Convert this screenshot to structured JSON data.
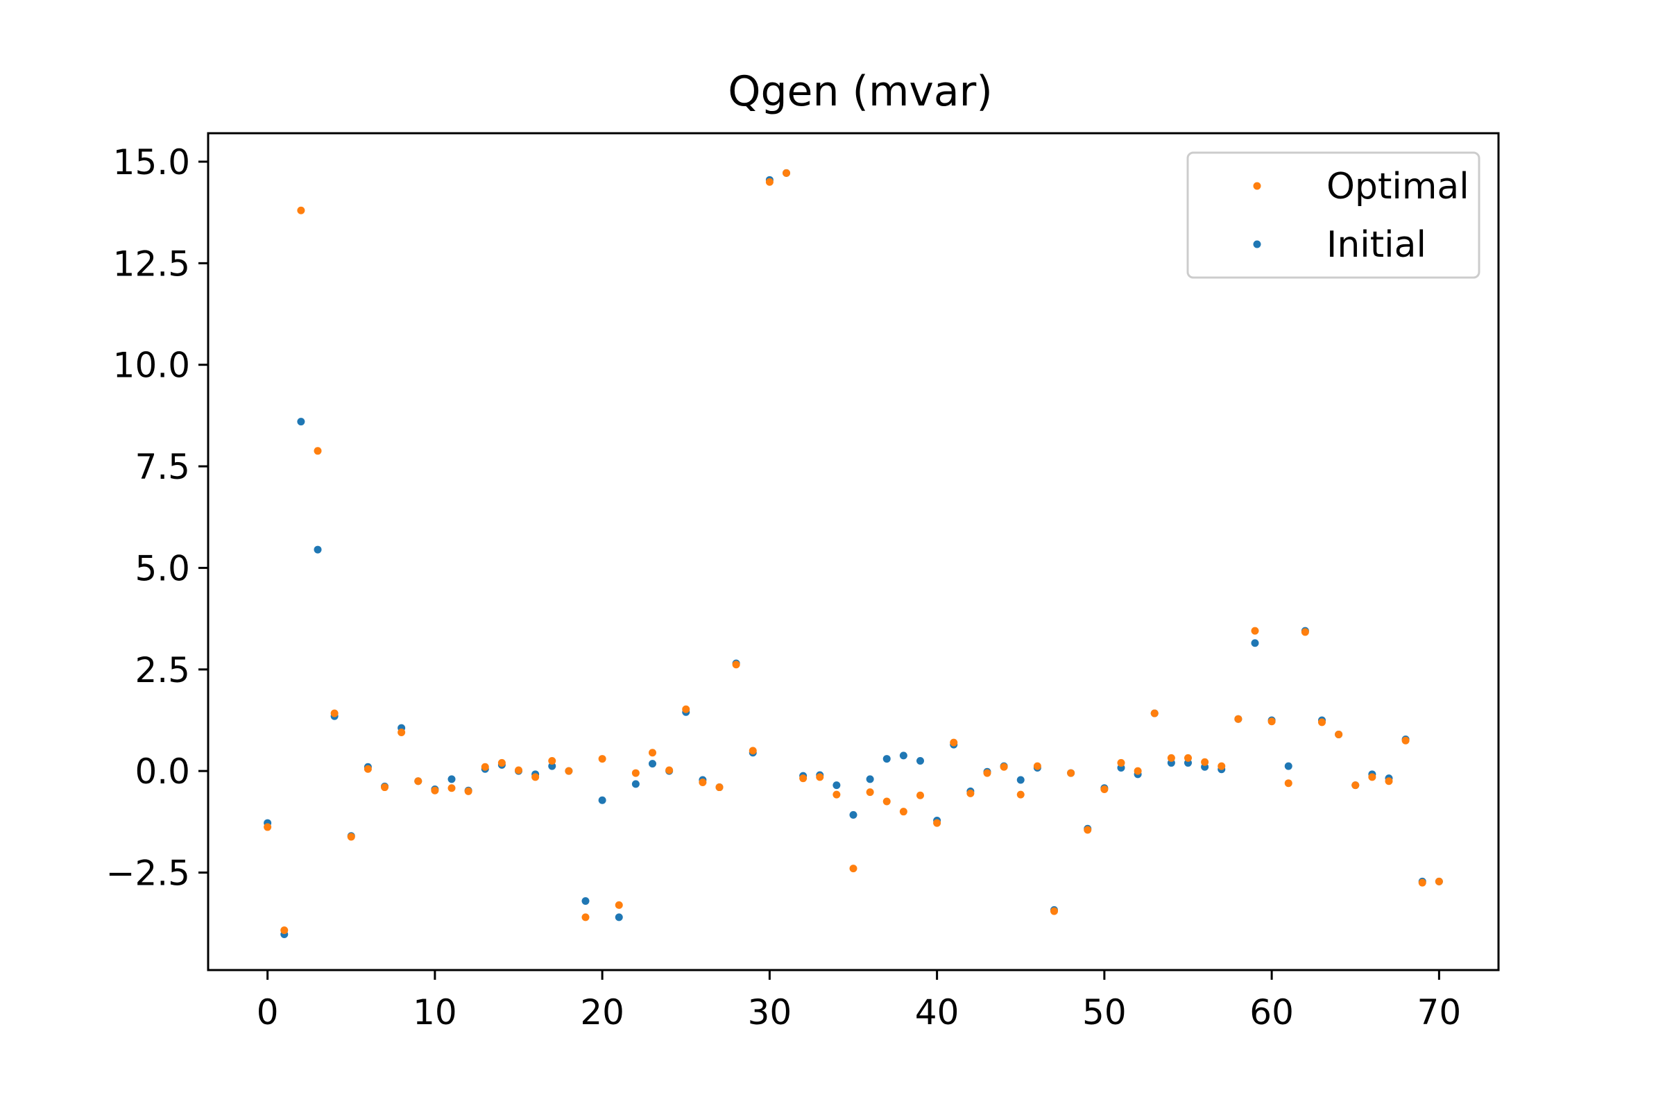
{
  "chart_data": {
    "type": "scatter",
    "title": "Qgen (mvar)",
    "xlabel": "",
    "ylabel": "",
    "xlim": [
      -3.55,
      73.55
    ],
    "ylim": [
      -4.9,
      15.7
    ],
    "x_ticks": [
      0,
      10,
      20,
      30,
      40,
      50,
      60,
      70
    ],
    "x_tick_labels": [
      "0",
      "10",
      "20",
      "30",
      "40",
      "50",
      "60",
      "70"
    ],
    "y_ticks": [
      -2.5,
      0,
      2.5,
      5,
      7.5,
      10,
      12.5,
      15
    ],
    "y_tick_labels": [
      "−2.5",
      "0.0",
      "2.5",
      "5.0",
      "7.5",
      "10.0",
      "12.5",
      "15.0"
    ],
    "grid": false,
    "legend_position": "top-right",
    "x": [
      0,
      1,
      2,
      3,
      4,
      5,
      6,
      7,
      8,
      9,
      10,
      11,
      12,
      13,
      14,
      15,
      16,
      17,
      18,
      19,
      20,
      21,
      22,
      23,
      24,
      25,
      26,
      27,
      28,
      29,
      30,
      31,
      32,
      33,
      34,
      35,
      36,
      37,
      38,
      39,
      40,
      41,
      42,
      43,
      44,
      45,
      46,
      47,
      48,
      49,
      50,
      51,
      52,
      53,
      54,
      55,
      56,
      57,
      58,
      59,
      60,
      61,
      62,
      63,
      64,
      65,
      66,
      67,
      68,
      69,
      70
    ],
    "series": [
      {
        "name": "Initial",
        "color": "#1f77b4",
        "values": [
          -1.28,
          -4.02,
          8.6,
          5.45,
          1.35,
          -1.6,
          0.1,
          -0.38,
          1.06,
          -0.25,
          -0.45,
          -0.2,
          -0.48,
          0.05,
          0.15,
          0.0,
          -0.08,
          0.12,
          0.0,
          -3.2,
          -0.72,
          -3.6,
          -0.32,
          0.18,
          0.0,
          1.45,
          -0.22,
          -0.4,
          2.65,
          0.45,
          14.55,
          14.72,
          -0.12,
          -0.1,
          -0.35,
          -1.08,
          -0.2,
          0.3,
          0.38,
          0.25,
          -1.22,
          0.65,
          -0.5,
          -0.02,
          0.12,
          -0.22,
          0.08,
          -3.42,
          -0.05,
          -1.42,
          -0.42,
          0.08,
          -0.08,
          1.42,
          0.2,
          0.2,
          0.1,
          0.04,
          1.28,
          3.15,
          1.25,
          0.12,
          3.45,
          1.25,
          0.9,
          -0.35,
          -0.08,
          -0.18,
          0.78,
          -2.72,
          -2.72
        ]
      },
      {
        "name": "Optimal",
        "color": "#ff7f0e",
        "values": [
          -1.38,
          -3.92,
          13.8,
          7.88,
          1.42,
          -1.62,
          0.05,
          -0.4,
          0.95,
          -0.25,
          -0.48,
          -0.42,
          -0.5,
          0.1,
          0.2,
          0.02,
          -0.15,
          0.25,
          0.0,
          -3.6,
          0.3,
          -3.3,
          -0.05,
          0.45,
          0.02,
          1.52,
          -0.28,
          -0.4,
          2.62,
          0.5,
          14.5,
          14.72,
          -0.18,
          -0.15,
          -0.58,
          -2.4,
          -0.52,
          -0.75,
          -1.0,
          -0.6,
          -1.28,
          0.7,
          -0.55,
          -0.05,
          0.1,
          -0.58,
          0.12,
          -3.45,
          -0.05,
          -1.45,
          -0.45,
          0.2,
          0.0,
          1.42,
          0.32,
          0.32,
          0.22,
          0.12,
          1.28,
          3.45,
          1.22,
          -0.3,
          3.42,
          1.2,
          0.9,
          -0.35,
          -0.15,
          -0.25,
          0.75,
          -2.75,
          -2.72
        ]
      }
    ],
    "legend": [
      {
        "name": "Optimal",
        "color": "#ff7f0e"
      },
      {
        "name": "Initial",
        "color": "#1f77b4"
      }
    ]
  }
}
